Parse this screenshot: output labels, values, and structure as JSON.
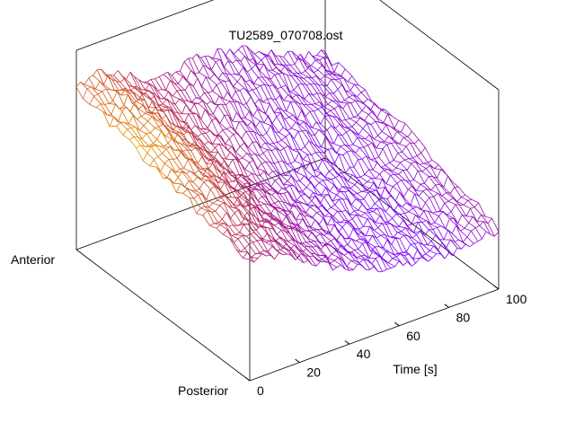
{
  "chart_data": {
    "type": "surface",
    "title": "TU2589_070708.ost",
    "xlabel": "Time [s]",
    "ylabel_front": "Posterior",
    "ylabel_back": "Anterior",
    "xlim": [
      0,
      100
    ],
    "xticks": [
      0,
      20,
      40,
      60,
      80,
      100
    ],
    "xtick_labels": [
      "0",
      "20",
      "40",
      "60",
      "80",
      "100"
    ],
    "y_levels_front_to_back": [
      "Posterior",
      "Anterior"
    ],
    "zlim": [
      0,
      1
    ],
    "colormap": [
      "#7a00ff",
      "#b01c6a",
      "#e07a00",
      "#ffee00"
    ],
    "surface_profile_notes": "height along time for front, middle and back rows",
    "series": [
      {
        "position": 0.0,
        "values": [
          0.6,
          0.58,
          0.52,
          0.44,
          0.38,
          0.33,
          0.3,
          0.28,
          0.27,
          0.28,
          0.3
        ]
      },
      {
        "position": 0.5,
        "values": [
          0.7,
          0.72,
          0.65,
          0.55,
          0.48,
          0.44,
          0.42,
          0.4,
          0.4,
          0.42,
          0.45
        ]
      },
      {
        "position": 1.0,
        "values": [
          0.8,
          0.85,
          0.78,
          0.7,
          0.72,
          0.74,
          0.72,
          0.68,
          0.62,
          0.56,
          0.52
        ]
      }
    ]
  }
}
